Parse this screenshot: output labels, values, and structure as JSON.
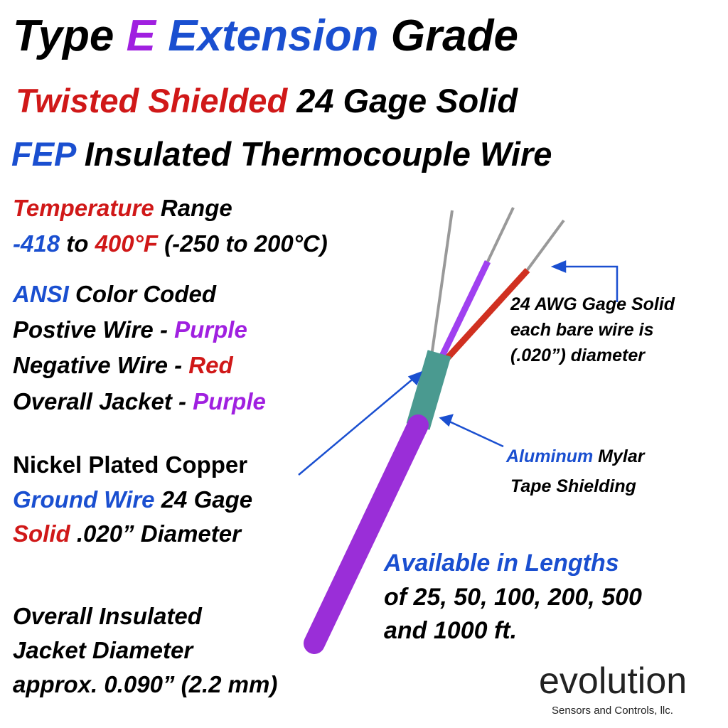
{
  "header": {
    "line1": [
      "Type",
      "E",
      "Extension",
      "Grade"
    ],
    "line2": [
      "Twisted Shielded",
      "24 Gage Solid"
    ],
    "line3": [
      "FEP",
      "Insulated Thermocouple Wire"
    ]
  },
  "temperature": {
    "line1": [
      "Temperature",
      "Range"
    ],
    "line2": [
      "-418",
      "to",
      "400°F",
      "(-250 to 200°C)"
    ]
  },
  "colors": {
    "line1": [
      "ANSI",
      "Color Coded"
    ],
    "line2": [
      "Postive Wire -",
      "Purple"
    ],
    "line3": [
      "Negative Wire -",
      "Red"
    ],
    "line4": [
      "Overall Jacket -",
      "Purple"
    ]
  },
  "ground": {
    "line1": [
      "Nickel Plated Copper"
    ],
    "line2": [
      "Ground Wire",
      "24 Gage"
    ],
    "line3": [
      "Solid",
      ".020” Diameter"
    ]
  },
  "jacket": {
    "lines": [
      "Overall Insulated",
      "Jacket Diameter",
      "approx. 0.090” (2.2 mm)"
    ]
  },
  "callouts": {
    "gage": [
      "24 AWG Gage Solid",
      "each bare wire is",
      "(.020”) diameter"
    ],
    "shield": {
      "line1": [
        "Aluminum",
        "Mylar"
      ],
      "line2": [
        "Tape Shielding"
      ]
    }
  },
  "lengths": {
    "title": "Available in Lengths",
    "lines": [
      "of 25, 50, 100, 200, 500",
      "and 1000 ft."
    ]
  },
  "logo": {
    "name": "evolution",
    "tagline": "Sensors and Controls, llc."
  }
}
